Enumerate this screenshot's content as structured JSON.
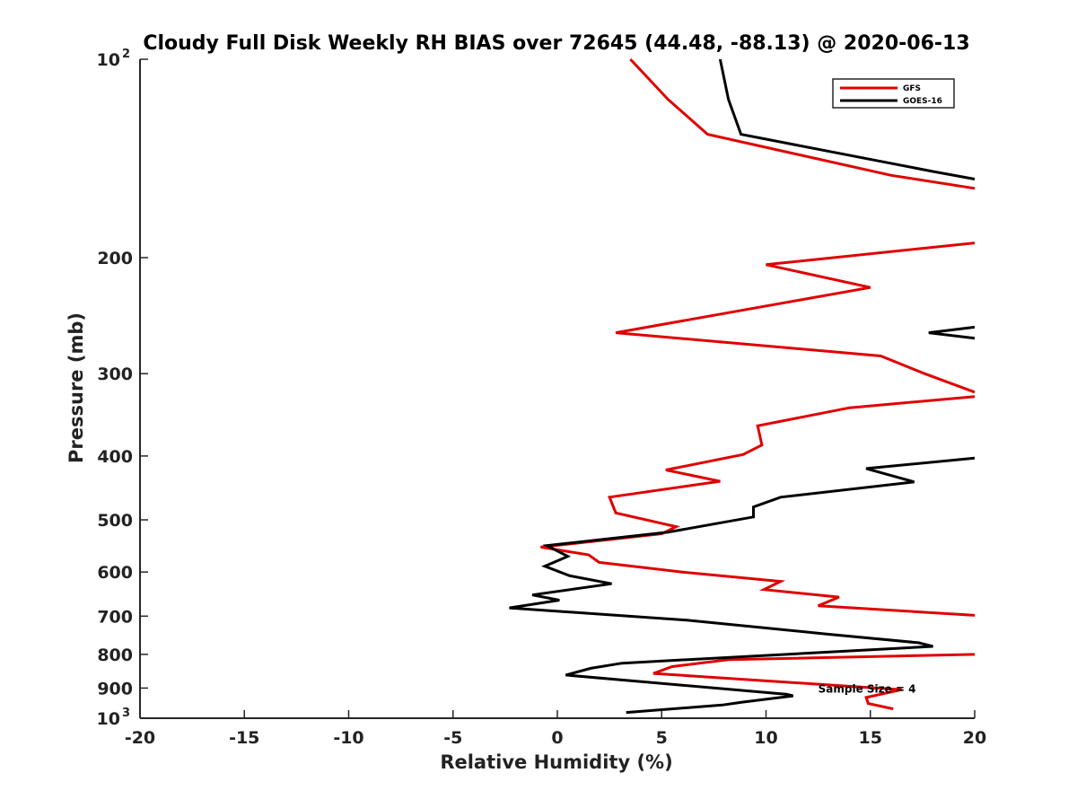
{
  "chart_data": {
    "type": "line",
    "title": "Cloudy Full Disk Weekly RH BIAS over 72645 (44.48, -88.13) @ 2020-06-13",
    "xlabel": "Relative Humidity (%)",
    "ylabel": "Pressure (mb)",
    "xlim": [
      -20,
      20
    ],
    "ylim": [
      100,
      1000
    ],
    "y_scale": "log",
    "y_reversed": true,
    "grid": false,
    "legend_position": "top-right",
    "x_ticks": [
      "-20",
      "-15",
      "-10",
      "-5",
      "0",
      "5",
      "10",
      "15",
      "20"
    ],
    "x_tick_values": [
      -20,
      -15,
      -10,
      -5,
      0,
      5,
      10,
      15,
      20
    ],
    "y_ticks": [
      {
        "value": 100,
        "base": "10",
        "exp": "2"
      },
      {
        "value": 200,
        "base": "200",
        "exp": ""
      },
      {
        "value": 300,
        "base": "300",
        "exp": ""
      },
      {
        "value": 400,
        "base": "400",
        "exp": ""
      },
      {
        "value": 500,
        "base": "500",
        "exp": ""
      },
      {
        "value": 600,
        "base": "600",
        "exp": ""
      },
      {
        "value": 700,
        "base": "700",
        "exp": ""
      },
      {
        "value": 800,
        "base": "800",
        "exp": ""
      },
      {
        "value": 900,
        "base": "900",
        "exp": ""
      },
      {
        "value": 1000,
        "base": "10",
        "exp": "3"
      }
    ],
    "annotation": {
      "text": "Sample Size = 4",
      "x": 12.5,
      "y": 900
    },
    "series": [
      {
        "name": "GFS",
        "color": "#e00000",
        "segments": [
          [
            [
              3.5,
              100
            ],
            [
              5.3,
              115
            ],
            [
              7.2,
              130
            ],
            [
              16,
              150
            ],
            [
              20,
              157
            ]
          ],
          [
            [
              20,
              190
            ],
            [
              10,
              205
            ],
            [
              15,
              222
            ],
            [
              2.8,
              260
            ],
            [
              15.5,
              282
            ],
            [
              17.6,
              300
            ],
            [
              20,
              320
            ]
          ],
          [
            [
              20,
              325
            ],
            [
              14,
              338
            ],
            [
              9.6,
              360
            ],
            [
              9.8,
              385
            ],
            [
              8.9,
              398
            ],
            [
              5.2,
              420
            ],
            [
              7.8,
              437
            ],
            [
              2.5,
              462
            ],
            [
              2.8,
              488
            ],
            [
              5.7,
              512
            ],
            [
              5,
              525
            ],
            [
              -0.8,
              550
            ],
            [
              1.5,
              565
            ],
            [
              2,
              580
            ],
            [
              6,
              600
            ],
            [
              10.7,
              620
            ],
            [
              9.9,
              638
            ],
            [
              13.5,
              655
            ],
            [
              12.5,
              675
            ],
            [
              20,
              698
            ]
          ],
          [
            [
              20,
              800
            ],
            [
              8.2,
              815
            ],
            [
              5.5,
              835
            ],
            [
              4.6,
              855
            ],
            [
              16.5,
              905
            ],
            [
              14.8,
              930
            ],
            [
              14.9,
              950
            ],
            [
              16.1,
              968
            ]
          ]
        ]
      },
      {
        "name": "GOES-16",
        "color": "#000000",
        "segments": [
          [
            [
              7.8,
              100
            ],
            [
              8.2,
              115
            ],
            [
              8.8,
              130
            ],
            [
              18,
              148
            ],
            [
              20,
              152
            ]
          ],
          [
            [
              20,
              255
            ],
            [
              17.8,
              260
            ],
            [
              20,
              265
            ]
          ],
          [
            [
              20,
              403
            ],
            [
              14.8,
              418
            ],
            [
              17.1,
              438
            ],
            [
              10.7,
              462
            ],
            [
              9.4,
              478
            ],
            [
              9.4,
              495
            ],
            [
              5.3,
              522
            ],
            [
              -0.5,
              547
            ],
            [
              0.5,
              568
            ],
            [
              -0.6,
              588
            ],
            [
              0.6,
              608
            ],
            [
              2.6,
              625
            ],
            [
              -1.2,
              650
            ],
            [
              0.1,
              662
            ],
            [
              -2.3,
              680
            ],
            [
              6.2,
              710
            ],
            [
              12.9,
              745
            ],
            [
              17.3,
              768
            ],
            [
              18,
              778
            ],
            [
              3.1,
              825
            ],
            [
              1.6,
              840
            ],
            [
              0.4,
              860
            ],
            [
              11,
              920
            ],
            [
              11.3,
              925
            ],
            [
              8.9,
              945
            ],
            [
              7.9,
              955
            ],
            [
              3.3,
              980
            ]
          ]
        ]
      }
    ]
  }
}
